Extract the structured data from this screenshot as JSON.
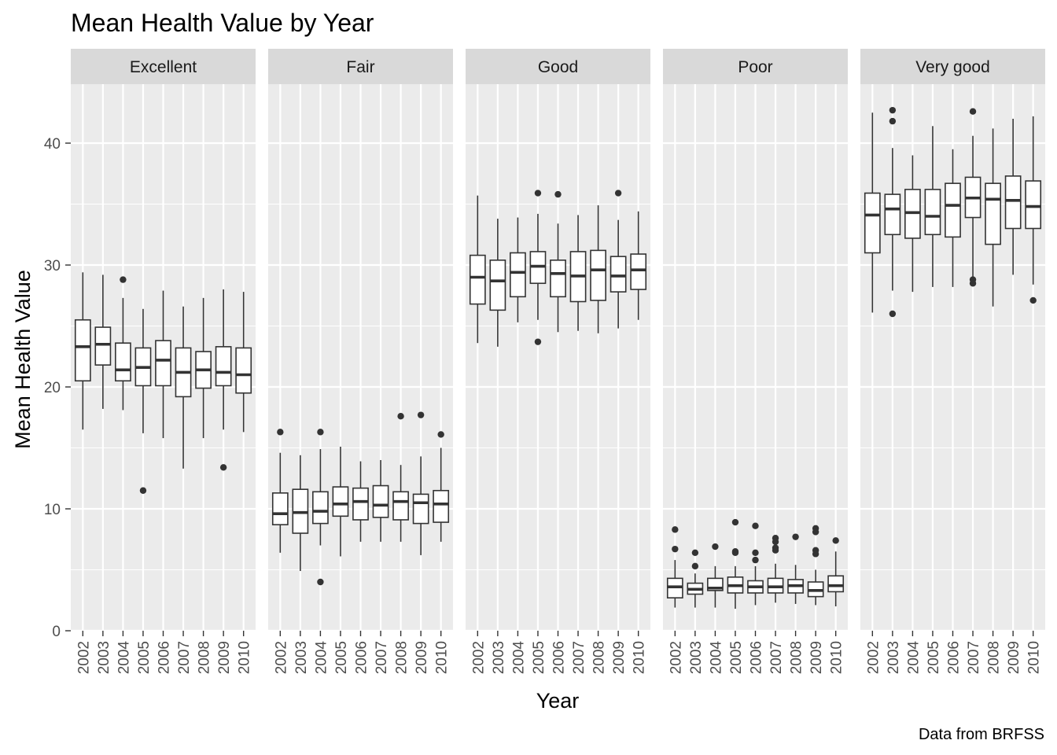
{
  "chart_data": {
    "type": "box",
    "title": "Mean Health Value by Year",
    "xlabel": "Year",
    "ylabel": "Mean Health Value",
    "caption": "Data from BRFSS",
    "ylim": [
      0,
      45
    ],
    "yticks": [
      0,
      10,
      20,
      30,
      40
    ],
    "years": [
      "2002",
      "2003",
      "2004",
      "2005",
      "2006",
      "2007",
      "2008",
      "2009",
      "2010"
    ],
    "grid": true,
    "colors": {
      "panel": "#ebebeb",
      "strip": "#d9d9d9",
      "grid": "#ffffff",
      "box": "#333333"
    },
    "facets": [
      {
        "name": "Excellent",
        "boxes": [
          {
            "year": "2002",
            "whisker_low": 16.5,
            "q1": 20.5,
            "median": 23.3,
            "q3": 25.5,
            "whisker_high": 29.4,
            "outliers": []
          },
          {
            "year": "2003",
            "whisker_low": 18.2,
            "q1": 21.8,
            "median": 23.5,
            "q3": 24.9,
            "whisker_high": 29.2,
            "outliers": []
          },
          {
            "year": "2004",
            "whisker_low": 18.1,
            "q1": 20.5,
            "median": 21.4,
            "q3": 23.6,
            "whisker_high": 27.3,
            "outliers": [
              28.8
            ]
          },
          {
            "year": "2005",
            "whisker_low": 16.2,
            "q1": 20.1,
            "median": 21.6,
            "q3": 23.2,
            "whisker_high": 26.4,
            "outliers": [
              11.5
            ]
          },
          {
            "year": "2006",
            "whisker_low": 15.8,
            "q1": 20.1,
            "median": 22.2,
            "q3": 23.8,
            "whisker_high": 27.9,
            "outliers": []
          },
          {
            "year": "2007",
            "whisker_low": 13.3,
            "q1": 19.2,
            "median": 21.2,
            "q3": 23.2,
            "whisker_high": 26.6,
            "outliers": []
          },
          {
            "year": "2008",
            "whisker_low": 15.8,
            "q1": 19.9,
            "median": 21.4,
            "q3": 22.9,
            "whisker_high": 27.3,
            "outliers": []
          },
          {
            "year": "2009",
            "whisker_low": 16.5,
            "q1": 20.1,
            "median": 21.2,
            "q3": 23.3,
            "whisker_high": 28.0,
            "outliers": [
              13.4
            ]
          },
          {
            "year": "2010",
            "whisker_low": 16.3,
            "q1": 19.5,
            "median": 21.0,
            "q3": 23.2,
            "whisker_high": 27.8,
            "outliers": []
          }
        ]
      },
      {
        "name": "Fair",
        "boxes": [
          {
            "year": "2002",
            "whisker_low": 6.4,
            "q1": 8.7,
            "median": 9.6,
            "q3": 11.3,
            "whisker_high": 14.6,
            "outliers": [
              16.3
            ]
          },
          {
            "year": "2003",
            "whisker_low": 4.9,
            "q1": 8.0,
            "median": 9.7,
            "q3": 11.6,
            "whisker_high": 14.4,
            "outliers": []
          },
          {
            "year": "2004",
            "whisker_low": 7.0,
            "q1": 8.8,
            "median": 9.8,
            "q3": 11.4,
            "whisker_high": 14.9,
            "outliers": [
              16.3,
              4.0
            ]
          },
          {
            "year": "2005",
            "whisker_low": 6.1,
            "q1": 9.4,
            "median": 10.4,
            "q3": 11.8,
            "whisker_high": 15.1,
            "outliers": []
          },
          {
            "year": "2006",
            "whisker_low": 7.3,
            "q1": 9.1,
            "median": 10.6,
            "q3": 11.7,
            "whisker_high": 13.9,
            "outliers": []
          },
          {
            "year": "2007",
            "whisker_low": 7.3,
            "q1": 9.3,
            "median": 10.3,
            "q3": 11.9,
            "whisker_high": 14.0,
            "outliers": []
          },
          {
            "year": "2008",
            "whisker_low": 7.3,
            "q1": 9.1,
            "median": 10.6,
            "q3": 11.4,
            "whisker_high": 13.6,
            "outliers": [
              17.6
            ]
          },
          {
            "year": "2009",
            "whisker_low": 6.2,
            "q1": 8.8,
            "median": 10.5,
            "q3": 11.2,
            "whisker_high": 14.3,
            "outliers": [
              17.7
            ]
          },
          {
            "year": "2010",
            "whisker_low": 7.3,
            "q1": 8.9,
            "median": 10.4,
            "q3": 11.5,
            "whisker_high": 15.0,
            "outliers": [
              16.1
            ]
          }
        ]
      },
      {
        "name": "Good",
        "boxes": [
          {
            "year": "2002",
            "whisker_low": 23.6,
            "q1": 26.8,
            "median": 29.0,
            "q3": 30.8,
            "whisker_high": 35.7,
            "outliers": []
          },
          {
            "year": "2003",
            "whisker_low": 23.3,
            "q1": 26.3,
            "median": 28.7,
            "q3": 30.4,
            "whisker_high": 33.8,
            "outliers": []
          },
          {
            "year": "2004",
            "whisker_low": 25.3,
            "q1": 27.4,
            "median": 29.4,
            "q3": 31.0,
            "whisker_high": 33.9,
            "outliers": []
          },
          {
            "year": "2005",
            "whisker_low": 25.5,
            "q1": 28.5,
            "median": 29.9,
            "q3": 31.1,
            "whisker_high": 34.2,
            "outliers": [
              35.9,
              23.7
            ]
          },
          {
            "year": "2006",
            "whisker_low": 24.5,
            "q1": 27.4,
            "median": 29.3,
            "q3": 30.4,
            "whisker_high": 33.4,
            "outliers": [
              35.8
            ]
          },
          {
            "year": "2007",
            "whisker_low": 24.6,
            "q1": 27.0,
            "median": 29.1,
            "q3": 31.1,
            "whisker_high": 34.1,
            "outliers": []
          },
          {
            "year": "2008",
            "whisker_low": 24.4,
            "q1": 27.1,
            "median": 29.6,
            "q3": 31.2,
            "whisker_high": 34.9,
            "outliers": []
          },
          {
            "year": "2009",
            "whisker_low": 24.8,
            "q1": 27.8,
            "median": 29.1,
            "q3": 30.7,
            "whisker_high": 33.7,
            "outliers": [
              35.9
            ]
          },
          {
            "year": "2010",
            "whisker_low": 25.5,
            "q1": 28.0,
            "median": 29.6,
            "q3": 30.9,
            "whisker_high": 34.4,
            "outliers": []
          }
        ]
      },
      {
        "name": "Poor",
        "boxes": [
          {
            "year": "2002",
            "whisker_low": 1.9,
            "q1": 2.7,
            "median": 3.6,
            "q3": 4.3,
            "whisker_high": 5.8,
            "outliers": [
              8.3,
              6.7
            ]
          },
          {
            "year": "2003",
            "whisker_low": 1.9,
            "q1": 3.0,
            "median": 3.4,
            "q3": 3.9,
            "whisker_high": 4.7,
            "outliers": [
              6.4,
              5.3
            ]
          },
          {
            "year": "2004",
            "whisker_low": 1.9,
            "q1": 3.3,
            "median": 3.5,
            "q3": 4.3,
            "whisker_high": 5.3,
            "outliers": [
              6.9
            ]
          },
          {
            "year": "2005",
            "whisker_low": 1.8,
            "q1": 3.1,
            "median": 3.7,
            "q3": 4.4,
            "whisker_high": 5.3,
            "outliers": [
              8.9,
              6.5,
              6.4
            ]
          },
          {
            "year": "2006",
            "whisker_low": 2.1,
            "q1": 3.1,
            "median": 3.6,
            "q3": 4.1,
            "whisker_high": 5.3,
            "outliers": [
              8.6,
              6.4,
              5.8
            ]
          },
          {
            "year": "2007",
            "whisker_low": 2.3,
            "q1": 3.1,
            "median": 3.6,
            "q3": 4.3,
            "whisker_high": 5.5,
            "outliers": [
              7.6,
              7.3,
              6.8,
              6.6
            ]
          },
          {
            "year": "2008",
            "whisker_low": 2.2,
            "q1": 3.1,
            "median": 3.7,
            "q3": 4.2,
            "whisker_high": 5.4,
            "outliers": [
              7.7
            ]
          },
          {
            "year": "2009",
            "whisker_low": 2.1,
            "q1": 2.8,
            "median": 3.3,
            "q3": 4.0,
            "whisker_high": 5.0,
            "outliers": [
              8.4,
              8.1,
              6.6,
              6.3
            ]
          },
          {
            "year": "2010",
            "whisker_low": 2.0,
            "q1": 3.2,
            "median": 3.7,
            "q3": 4.5,
            "whisker_high": 6.5,
            "outliers": [
              7.4
            ]
          }
        ]
      },
      {
        "name": "Very good",
        "boxes": [
          {
            "year": "2002",
            "whisker_low": 26.1,
            "q1": 31.0,
            "median": 34.1,
            "q3": 35.9,
            "whisker_high": 42.5,
            "outliers": []
          },
          {
            "year": "2003",
            "whisker_low": 27.9,
            "q1": 32.5,
            "median": 34.6,
            "q3": 35.8,
            "whisker_high": 39.6,
            "outliers": [
              42.7,
              41.8,
              26.0
            ]
          },
          {
            "year": "2004",
            "whisker_low": 27.8,
            "q1": 32.2,
            "median": 34.3,
            "q3": 36.2,
            "whisker_high": 39.0,
            "outliers": []
          },
          {
            "year": "2005",
            "whisker_low": 28.2,
            "q1": 32.5,
            "median": 34.0,
            "q3": 36.2,
            "whisker_high": 41.4,
            "outliers": []
          },
          {
            "year": "2006",
            "whisker_low": 28.2,
            "q1": 32.3,
            "median": 34.9,
            "q3": 36.7,
            "whisker_high": 39.5,
            "outliers": []
          },
          {
            "year": "2007",
            "whisker_low": 29.0,
            "q1": 33.9,
            "median": 35.5,
            "q3": 37.2,
            "whisker_high": 40.6,
            "outliers": [
              42.6,
              28.8,
              28.5
            ]
          },
          {
            "year": "2008",
            "whisker_low": 26.6,
            "q1": 31.7,
            "median": 35.4,
            "q3": 36.7,
            "whisker_high": 41.2,
            "outliers": []
          },
          {
            "year": "2009",
            "whisker_low": 29.2,
            "q1": 33.0,
            "median": 35.3,
            "q3": 37.3,
            "whisker_high": 42.0,
            "outliers": []
          },
          {
            "year": "2010",
            "whisker_low": 28.4,
            "q1": 33.0,
            "median": 34.8,
            "q3": 36.9,
            "whisker_high": 42.2,
            "outliers": [
              27.1
            ]
          }
        ]
      }
    ]
  }
}
